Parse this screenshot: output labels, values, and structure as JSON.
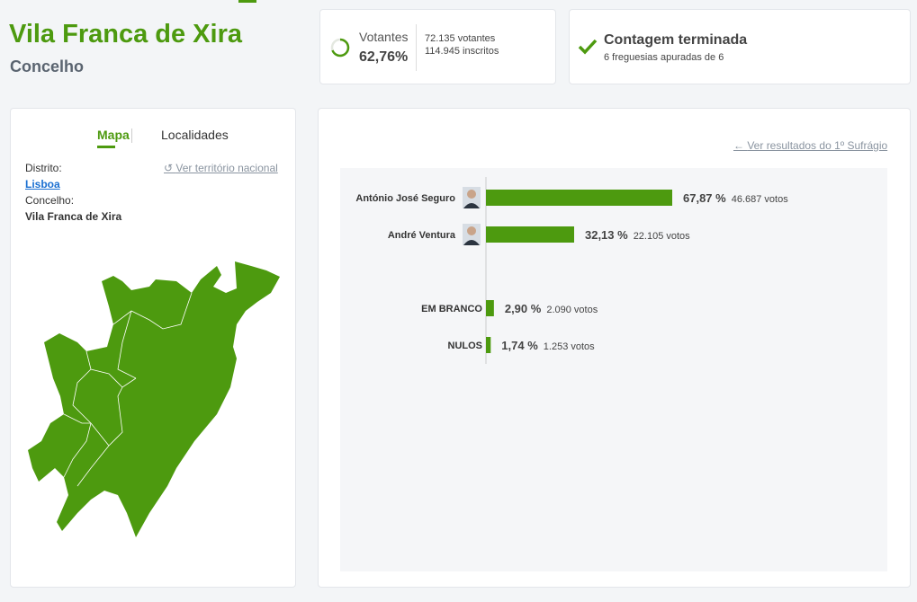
{
  "header": {
    "title": "Vila Franca de Xira",
    "subtitle": "Concelho"
  },
  "turnout": {
    "label": "Votantes",
    "percent": "62,76%",
    "voters": "72.135 votantes",
    "registered": "114.945 inscritos"
  },
  "count": {
    "title": "Contagem terminada",
    "detail": "6 freguesias apuradas de 6"
  },
  "tabs": [
    "Mapa",
    "Localidades"
  ],
  "location": {
    "district_label": "Distrito:",
    "district": "Lisboa",
    "council_label": "Concelho:",
    "council": "Vila Franca de Xira",
    "national_link": "Ver território nacional"
  },
  "first_round_link": "Ver resultados do 1º Sufrágio",
  "chart_data": {
    "type": "bar",
    "orientation": "horizontal",
    "categories": [
      "António José Seguro",
      "André Ventura",
      "EM BRANCO",
      "NULOS"
    ],
    "values": [
      67.87,
      32.13,
      2.9,
      1.74
    ],
    "value_labels": [
      "67,87 %",
      "32,13 %",
      "2,90 %",
      "1,74 %"
    ],
    "votes": [
      "46.687 votos",
      "22.105 votos",
      "2.090 votos",
      "1.253 votos"
    ],
    "color": "#4d9a0f"
  }
}
